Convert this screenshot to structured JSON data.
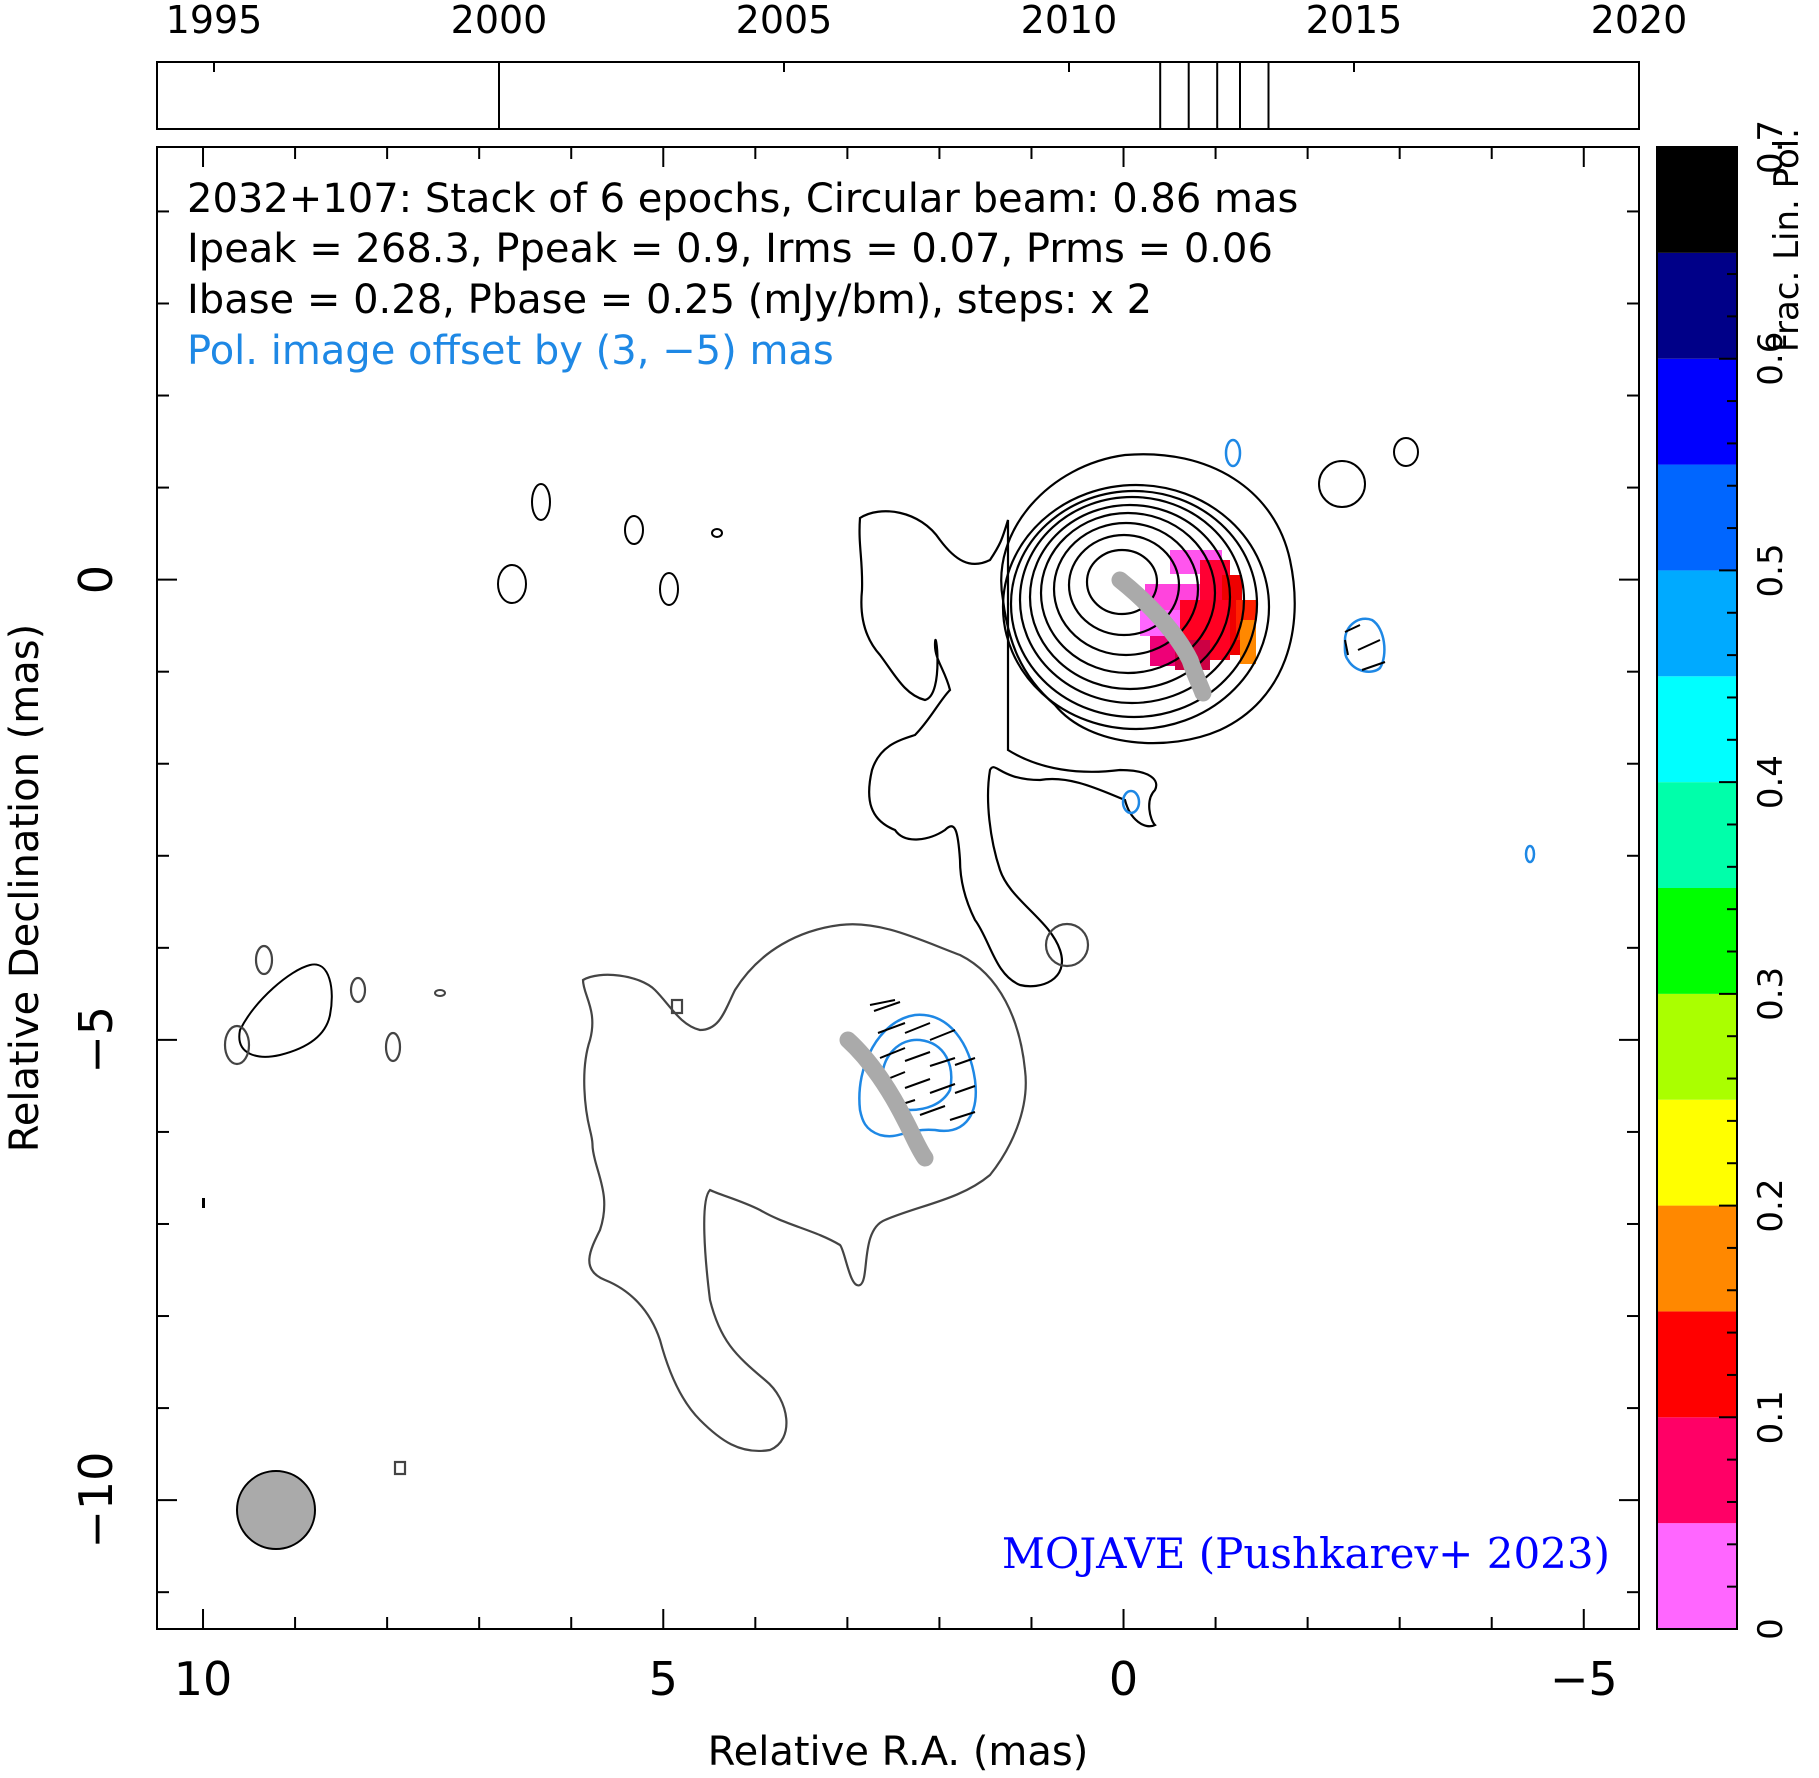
{
  "chart_data": {
    "type": "contour",
    "source": "2032+107",
    "header_lines": [
      "2032+107: Stack of 6 epochs, Circular beam: 0.86 mas",
      "Ipeak = 268.3, Ppeak = 0.9, Irms = 0.07, Prms = 0.06",
      "Ibase = 0.28, Pbase = 0.25 (mJy/bm), steps: x 2"
    ],
    "pol_offset_note": "Pol. image offset by (3, −5) mas",
    "credit": "MOJAVE (Pushkarev+ 2023)",
    "xlabel": "Relative R.A. (mas)",
    "ylabel": "Relative Declination (mas)",
    "xlim": [
      10.5,
      -5.6
    ],
    "ylim": [
      -11.4,
      4.7
    ],
    "x_ticks": [
      10,
      5,
      0,
      -5
    ],
    "x_tick_labels": [
      "10",
      "5",
      "0",
      "−5"
    ],
    "y_ticks": [
      0,
      -5,
      -10
    ],
    "y_tick_labels": [
      "0",
      "−5",
      "−10"
    ],
    "beam_mas": 0.86,
    "timeline": {
      "xlim": [
        1994,
        2020
      ],
      "ticks": [
        1995,
        2000,
        2005,
        2010,
        2015,
        2020
      ],
      "tick_labels": [
        "1995",
        "2000",
        "2005",
        "2010",
        "2015",
        "2020"
      ],
      "epochs": [
        2000.0,
        2011.6,
        2012.1,
        2012.6,
        2013.0,
        2013.5
      ]
    },
    "colorbar": {
      "label": "Frac. Lin. Pol.",
      "min": 0,
      "max": 0.7,
      "ticks": [
        0,
        0.1,
        0.2,
        0.3,
        0.4,
        0.5,
        0.6,
        0.7
      ],
      "tick_labels": [
        "0",
        "0.1",
        "0.2",
        "0.3",
        "0.4",
        "0.5",
        "0.6",
        "0.7"
      ],
      "colors": [
        "#ff66ff",
        "#ff0066",
        "#ff0000",
        "#ff8800",
        "#ffff00",
        "#aaff00",
        "#00ff00",
        "#00ffaa",
        "#00ffff",
        "#00aaff",
        "#0066ff",
        "#0000ff",
        "#000088",
        "#000000"
      ]
    },
    "colors": {
      "total_intensity_contour": "#000000",
      "polarized_contour": "#1e88e5",
      "jet_ridge": "#aaaaaa",
      "beam_fill": "#aaaaaa",
      "note_text": "#1e88e5",
      "credit_text": "#0000ff"
    }
  }
}
